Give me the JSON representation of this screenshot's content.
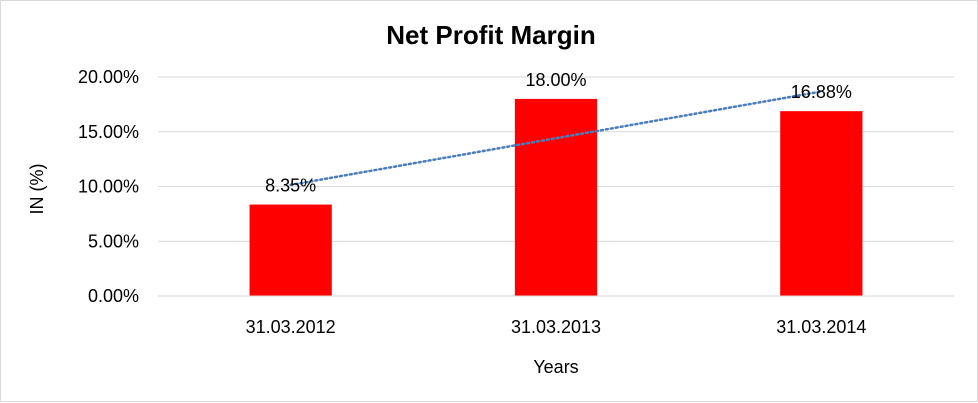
{
  "chart_data": {
    "type": "bar",
    "title": "Net Profit Margin",
    "xlabel": "Years",
    "ylabel": "IN (%)",
    "categories": [
      "31.03.2012",
      "31.03.2013",
      "31.03.2014"
    ],
    "values": [
      8.35,
      18.0,
      16.88
    ],
    "data_labels": [
      "8.35%",
      "18.00%",
      "16.88%"
    ],
    "ylim": [
      0,
      20
    ],
    "yticks": [
      0,
      5,
      10,
      15,
      20
    ],
    "ytick_labels": [
      "0.00%",
      "5.00%",
      "10.00%",
      "15.00%",
      "20.00%"
    ],
    "grid": true,
    "legend": "none",
    "bar_color": "#ff0000",
    "trendline": {
      "type": "linear",
      "style": "dotted",
      "color": "#4a7ebb"
    }
  }
}
